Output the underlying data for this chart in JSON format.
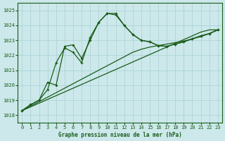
{
  "title": "Graphe pression niveau de la mer (hPa)",
  "background_color": "#cce8ea",
  "grid_color": "#a8d0d4",
  "line_color": "#1a5c1a",
  "x_ticks": [
    0,
    1,
    2,
    3,
    4,
    5,
    6,
    7,
    8,
    9,
    10,
    11,
    12,
    13,
    14,
    15,
    16,
    17,
    18,
    19,
    20,
    21,
    22,
    23
  ],
  "ylim": [
    1017.5,
    1025.5
  ],
  "yticks": [
    1018,
    1019,
    1020,
    1021,
    1022,
    1023,
    1024,
    1025
  ],
  "trend": [
    1018.3,
    1018.55,
    1018.8,
    1019.05,
    1019.3,
    1019.55,
    1019.8,
    1020.05,
    1020.3,
    1020.55,
    1020.8,
    1021.05,
    1021.3,
    1021.55,
    1021.8,
    1022.05,
    1022.3,
    1022.55,
    1022.8,
    1023.05,
    1023.3,
    1023.55,
    1023.7,
    1023.7
  ],
  "trend2": [
    1018.3,
    1018.6,
    1018.9,
    1019.2,
    1019.5,
    1019.8,
    1020.1,
    1020.4,
    1020.7,
    1021.0,
    1021.3,
    1021.6,
    1021.9,
    1022.2,
    1022.4,
    1022.55,
    1022.65,
    1022.75,
    1022.85,
    1022.95,
    1023.1,
    1023.25,
    1023.45,
    1023.7
  ],
  "curve_cross": [
    1018.3,
    1018.7,
    1019.0,
    1019.7,
    1021.5,
    1022.5,
    1022.2,
    1021.5,
    1023.2,
    1024.2,
    1024.8,
    1024.8,
    1024.0,
    1023.4,
    1023.0,
    1022.9,
    1022.65,
    1022.6,
    1022.75,
    1022.9,
    1023.1,
    1023.3,
    1023.45,
    1023.7
  ],
  "curve_dot": [
    1018.3,
    1018.7,
    1019.0,
    1020.2,
    1020.0,
    1022.6,
    1022.7,
    1021.8,
    1023.0,
    1024.2,
    1024.8,
    1024.7,
    1024.0,
    1023.4,
    1023.0,
    1022.9,
    1022.65,
    1022.6,
    1022.75,
    1022.9,
    1023.1,
    1023.3,
    1023.45,
    1023.7
  ]
}
